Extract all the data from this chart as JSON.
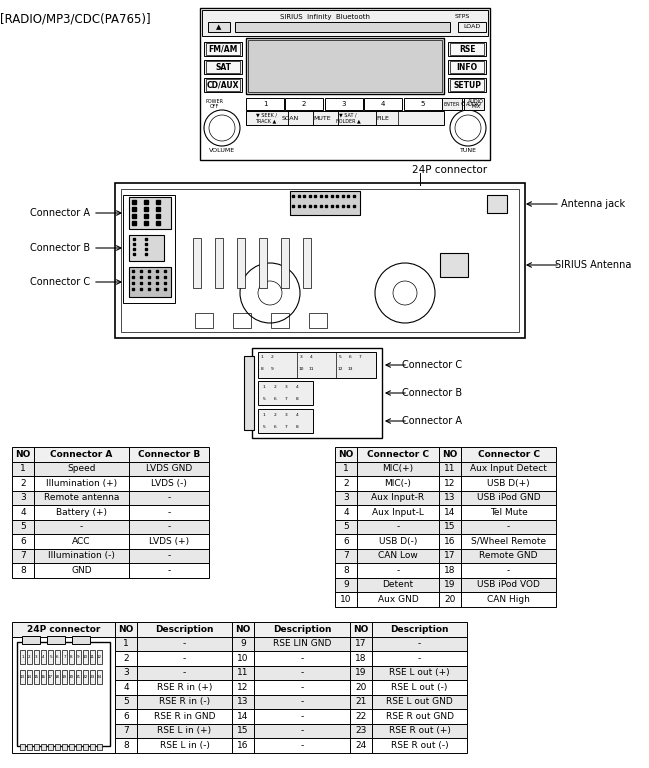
{
  "title": "[RADIO/MP3/CDC(PA765)]",
  "bg_color": "#ffffff",
  "table1_headers": [
    "NO",
    "Connector A",
    "Connector B"
  ],
  "table1_rows": [
    [
      "1",
      "Speed",
      "LVDS GND"
    ],
    [
      "2",
      "Illumination (+)",
      "LVDS (-)"
    ],
    [
      "3",
      "Remote antenna",
      "-"
    ],
    [
      "4",
      "Battery (+)",
      "-"
    ],
    [
      "5",
      "-",
      "-"
    ],
    [
      "6",
      "ACC",
      "LVDS (+)"
    ],
    [
      "7",
      "Illumination (-)",
      "-"
    ],
    [
      "8",
      "GND",
      "-"
    ]
  ],
  "table2_headers": [
    "NO",
    "Connector C",
    "NO",
    "Connector C"
  ],
  "table2_rows": [
    [
      "1",
      "MIC(+)",
      "11",
      "Aux Input Detect"
    ],
    [
      "2",
      "MIC(-)",
      "12",
      "USB D(+)"
    ],
    [
      "3",
      "Aux Input-R",
      "13",
      "USB iPod GND"
    ],
    [
      "4",
      "Aux Input-L",
      "14",
      "Tel Mute"
    ],
    [
      "5",
      "-",
      "15",
      "-"
    ],
    [
      "6",
      "USB D(-)",
      "16",
      "S/Wheel Remote"
    ],
    [
      "7",
      "CAN Low",
      "17",
      "Remote GND"
    ],
    [
      "8",
      "-",
      "18",
      "-"
    ],
    [
      "9",
      "Detent",
      "19",
      "USB iPod VOD"
    ],
    [
      "10",
      "Aux GND",
      "20",
      "CAN High"
    ]
  ],
  "table3_header": [
    "24P connector",
    "NO",
    "Description",
    "NO",
    "Description",
    "NO",
    "Description"
  ],
  "table3_rows": [
    [
      "",
      "1",
      "-",
      "9",
      "RSE LIN GND",
      "17",
      "-"
    ],
    [
      "",
      "2",
      "-",
      "10",
      "-",
      "18",
      "-"
    ],
    [
      "",
      "3",
      "-",
      "11",
      "-",
      "19",
      "RSE L out (+)"
    ],
    [
      "",
      "4",
      "RSE R in (+)",
      "12",
      "-",
      "20",
      "RSE L out (-)"
    ],
    [
      "",
      "5",
      "RSE R in (-)",
      "13",
      "-",
      "21",
      "RSE L out GND"
    ],
    [
      "",
      "6",
      "RSE R in GND",
      "14",
      "-",
      "22",
      "RSE R out GND"
    ],
    [
      "",
      "7",
      "RSE L in (+)",
      "15",
      "-",
      "23",
      "RSE R out (+)"
    ],
    [
      "",
      "8",
      "RSE L in (-)",
      "16",
      "-",
      "24",
      "RSE R out (-)"
    ]
  ],
  "connector_24p_label": "24P connector"
}
